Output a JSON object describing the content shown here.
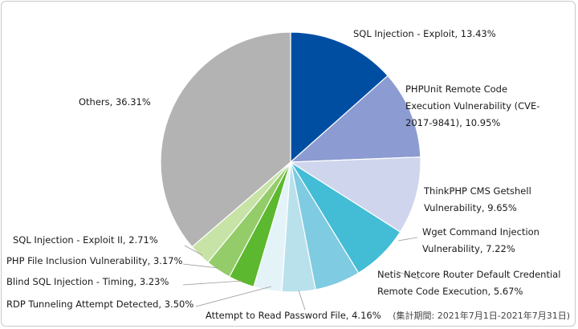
{
  "chart_data": {
    "type": "pie",
    "title": "",
    "start_angle_deg": 0,
    "direction": "clockwise",
    "slices": [
      {
        "label": "SQL Injection - Exploit, 13.43%",
        "value": 13.43,
        "color": "#004ea2"
      },
      {
        "label": "PHPUnit Remote Code Execution Vulnerability (CVE-2017-9841), 10.95%",
        "value": 10.95,
        "color": "#8c9bd1"
      },
      {
        "label": "ThinkPHP CMS Getshell Vulnerability, 9.65%",
        "value": 9.65,
        "color": "#cfd5ec"
      },
      {
        "label": "Wget Command Injection Vulnerability, 7.22%",
        "value": 7.22,
        "color": "#43bcd6"
      },
      {
        "label": "Netis Netcore Router Default Credential Remote Code Execution, 5.67%",
        "value": 5.67,
        "color": "#7fcbe2"
      },
      {
        "label": "Attempt to Read Password File, 4.16%",
        "value": 4.16,
        "color": "#b9e1ec"
      },
      {
        "label": "RDP Tunneling Attempt Detected, 3.50%",
        "value": 3.5,
        "color": "#e4f3f8"
      },
      {
        "label": "Blind SQL Injection - Timing, 3.23%",
        "value": 3.23,
        "color": "#5cb82e"
      },
      {
        "label": "PHP File Inclusion Vulnerability, 3.17%",
        "value": 3.17,
        "color": "#94cc6a"
      },
      {
        "label": "SQL Injection - Exploit II, 2.71%",
        "value": 2.71,
        "color": "#c7e3a6"
      },
      {
        "label": "Others, 36.31%",
        "value": 36.31,
        "color": "#b3b3b3"
      }
    ]
  },
  "labels": [
    {
      "lines": [
        "SQL Injection - Exploit, 13.43%"
      ]
    },
    {
      "lines": [
        "PHPUnit Remote Code",
        "Execution Vulnerability (CVE-",
        "2017-9841), 10.95%"
      ]
    },
    {
      "lines": [
        "ThinkPHP CMS Getshell",
        "Vulnerability, 9.65%"
      ]
    },
    {
      "lines": [
        "Wget Command Injection",
        "Vulnerability, 7.22%"
      ]
    },
    {
      "lines": [
        "Netis Netcore Router Default Credential",
        "Remote Code Execution, 5.67%"
      ]
    },
    {
      "lines": [
        "Attempt to Read Password File, 4.16%"
      ]
    },
    {
      "lines": [
        "RDP Tunneling Attempt Detected, 3.50%"
      ]
    },
    {
      "lines": [
        "Blind SQL Injection - Timing, 3.23%"
      ]
    },
    {
      "lines": [
        "PHP File Inclusion Vulnerability, 3.17%"
      ]
    },
    {
      "lines": [
        "SQL Injection - Exploit II, 2.71%"
      ]
    },
    {
      "lines": [
        "Others, 36.31%"
      ]
    }
  ],
  "period_note": "(集計期間: 2021年7月1日-2021年7月31日)"
}
